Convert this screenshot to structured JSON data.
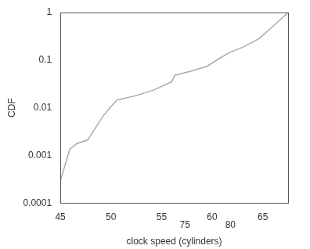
{
  "chart_data": {
    "type": "line",
    "x_label": "clock speed (cylinders)",
    "y_label": "CDF",
    "x": [
      45,
      45.93,
      46.65,
      47.7,
      48.4,
      49.2,
      49.9,
      50.6,
      52.4,
      54.2,
      56.0,
      56.3,
      57.8,
      59.5,
      60.6,
      61.7,
      63.1,
      64.6,
      66.0,
      67.5
    ],
    "values": [
      0.00029,
      0.00135,
      0.00178,
      0.0021,
      0.0036,
      0.0066,
      0.01,
      0.0145,
      0.0178,
      0.0234,
      0.035,
      0.048,
      0.058,
      0.074,
      0.105,
      0.144,
      0.19,
      0.28,
      0.51,
      1
    ],
    "color": "#aaaaaa",
    "xlim": [
      45,
      67.5
    ],
    "xticks": [
      45,
      50,
      55,
      60,
      65
    ],
    "ylim": [
      0.0001,
      1
    ],
    "yticks": [
      0.0001,
      0.001,
      0.01,
      0.1,
      1
    ],
    "log": "y",
    "grid": false,
    "annotations": [
      {
        "x": 57.3,
        "label": "75"
      },
      {
        "x": 61.8,
        "label": "80"
      }
    ]
  }
}
